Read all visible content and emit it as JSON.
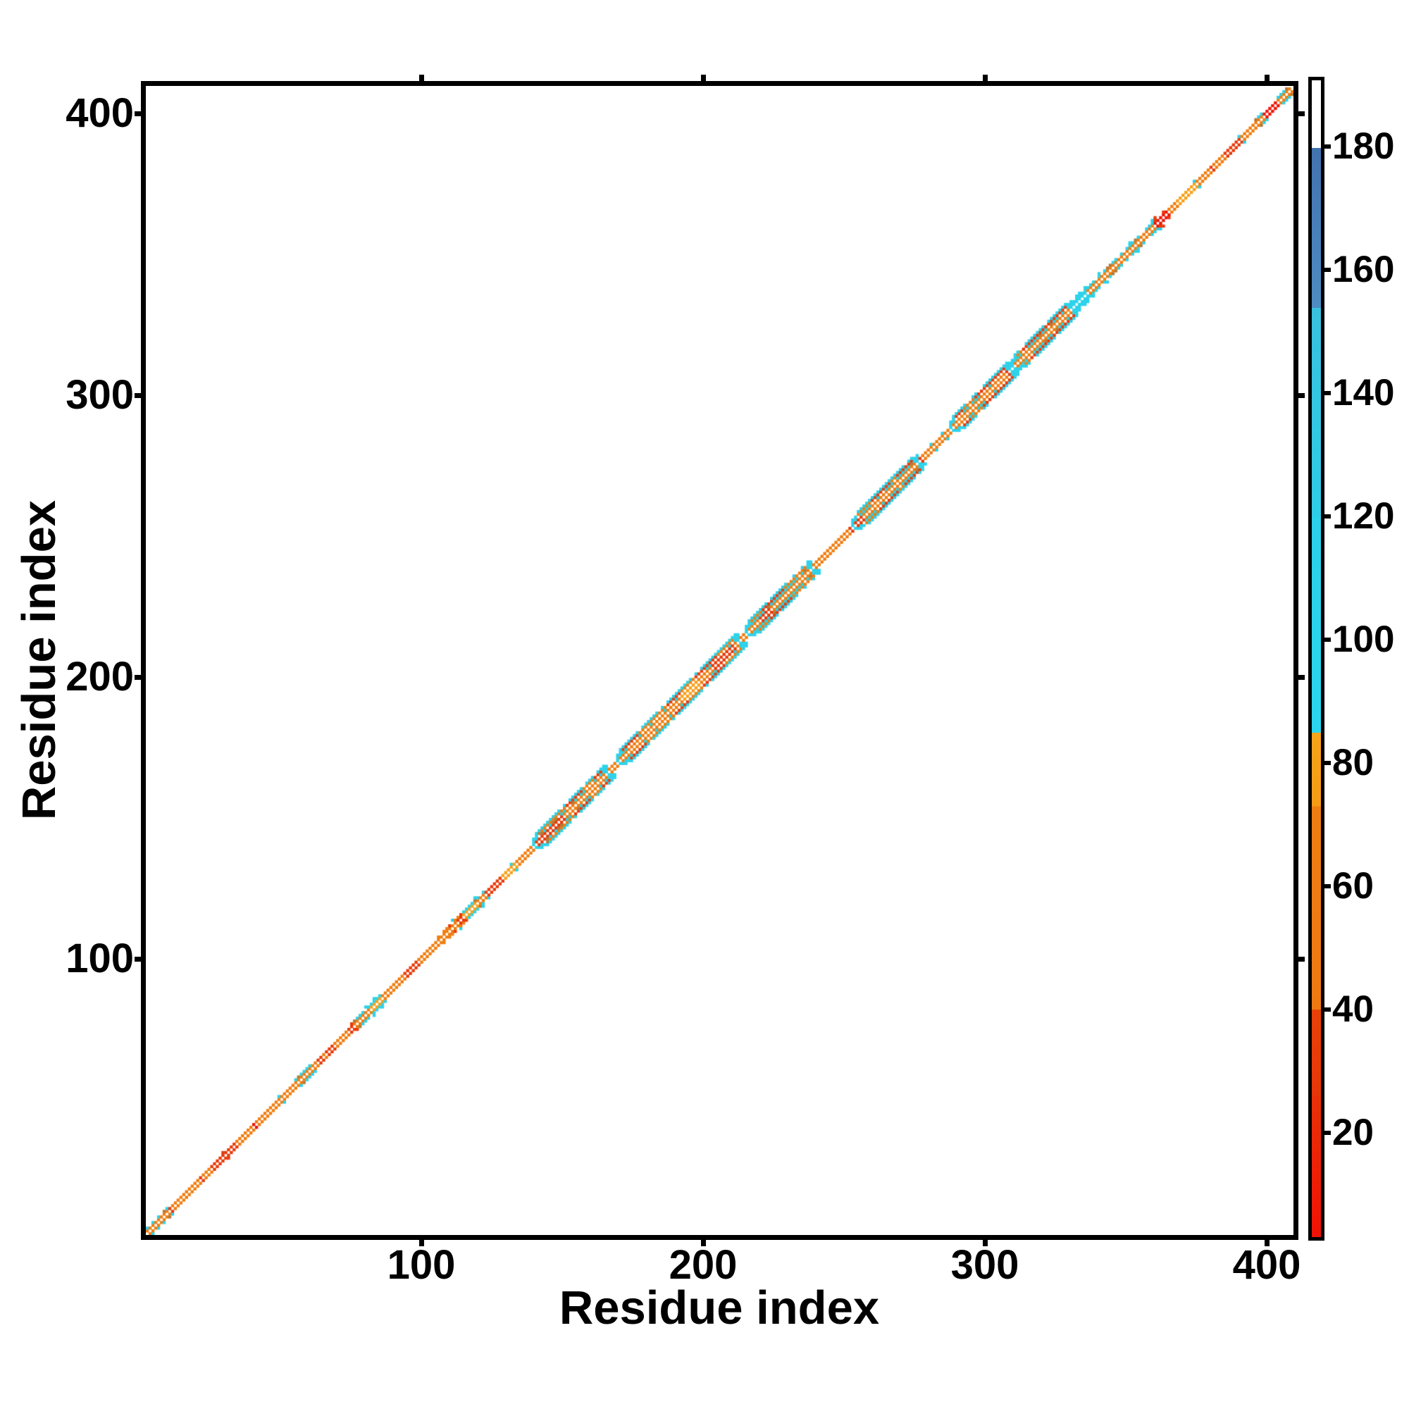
{
  "figure": {
    "xlabel": "Residue index",
    "ylabel": "Residue index",
    "x_ticks": [
      100,
      200,
      300,
      400
    ],
    "y_ticks": [
      100,
      200,
      300,
      400
    ],
    "axis_range": [
      1,
      410
    ]
  },
  "colorbar": {
    "range": [
      3,
      191
    ],
    "ticks": [
      20,
      40,
      60,
      80,
      100,
      120,
      140,
      160,
      180
    ],
    "stops": [
      {
        "from": 3,
        "to": 26,
        "c1": "#F01205",
        "c2": "#E93108"
      },
      {
        "from": 26,
        "to": 40,
        "c1": "#E73608",
        "c2": "#E84208"
      },
      {
        "from": 40,
        "to": 73,
        "c1": "#EE7911",
        "c2": "#EF7E12"
      },
      {
        "from": 73,
        "to": 85,
        "c1": "#F49C15",
        "c2": "#F6A41A"
      },
      {
        "from": 85,
        "to": 120,
        "c1": "#29D6EE",
        "c2": "#2BD0E9"
      },
      {
        "from": 120,
        "to": 154,
        "c1": "#2FCCE6",
        "c2": "#38C1DE"
      },
      {
        "from": 154,
        "to": 180,
        "c1": "#4E8CC2",
        "c2": "#4273B0"
      },
      {
        "from": 180,
        "to": 191,
        "c1": "#FFFFFF",
        "c2": "#FFFFFF"
      }
    ]
  },
  "chart_data": {
    "type": "heatmap",
    "title": "",
    "xlabel": "Residue index",
    "ylabel": "Residue index",
    "x_range": [
      1,
      410
    ],
    "y_range": [
      1,
      410
    ],
    "grid": false,
    "legend_position": "right-colorbar",
    "description": "Symmetric residue-residue contact map: colored cells only near the main diagonal (|i-j| <= 4). Main diagonal itself is white; flanking stripes are orange/red with cyan outer edges; thicker band segments correspond to helical regions.",
    "cell_size_residues": 1,
    "palette": {
      "orange": "#EF7D10",
      "orangeBright": "#F7A01A",
      "red": "#E73A0A",
      "redDeep": "#EE1506",
      "cyan": "#2BD2EA",
      "olive": "#AF7B3E",
      "background": "#FFFFFF"
    },
    "band_offsets": {
      "diagonal": "white",
      "thin_styles_width": 2,
      "thick_styles_width": 4
    },
    "segments": [
      {
        "start": 1,
        "end": 9,
        "style": "thinCyanEdge"
      },
      {
        "start": 9,
        "end": 27,
        "style": "thinOrange"
      },
      {
        "start": 27,
        "end": 40,
        "style": "thinRed"
      },
      {
        "start": 40,
        "end": 53,
        "style": "thinOrange"
      },
      {
        "start": 53,
        "end": 62,
        "style": "thinCyanEdge"
      },
      {
        "start": 62,
        "end": 75,
        "style": "thinRed"
      },
      {
        "start": 75,
        "end": 85,
        "style": "thinCyanEdge"
      },
      {
        "start": 85,
        "end": 98,
        "style": "thinOrange"
      },
      {
        "start": 98,
        "end": 105,
        "style": "thinRed"
      },
      {
        "start": 105,
        "end": 114,
        "style": "bulge"
      },
      {
        "start": 114,
        "end": 122,
        "style": "thinCyanEdge"
      },
      {
        "start": 122,
        "end": 128,
        "style": "thinRed"
      },
      {
        "start": 128,
        "end": 139,
        "style": "thinOrange"
      },
      {
        "start": 139,
        "end": 166,
        "style": "thickA"
      },
      {
        "start": 166,
        "end": 169,
        "style": "thinOrange"
      },
      {
        "start": 169,
        "end": 213,
        "style": "thickB"
      },
      {
        "start": 213,
        "end": 215,
        "style": "thinOrange"
      },
      {
        "start": 215,
        "end": 239,
        "style": "thickA"
      },
      {
        "start": 239,
        "end": 253,
        "style": "thinRed"
      },
      {
        "start": 253,
        "end": 277,
        "style": "thickA"
      },
      {
        "start": 277,
        "end": 288,
        "style": "thinOrange"
      },
      {
        "start": 288,
        "end": 310,
        "style": "thickB"
      },
      {
        "start": 310,
        "end": 332,
        "style": "thickA"
      },
      {
        "start": 332,
        "end": 340,
        "style": "cyanBlob"
      },
      {
        "start": 340,
        "end": 361,
        "style": "thinCyanEdge"
      },
      {
        "start": 361,
        "end": 366,
        "style": "redBlob"
      },
      {
        "start": 366,
        "end": 376,
        "style": "thinOrange"
      },
      {
        "start": 376,
        "end": 382,
        "style": "thinRed"
      },
      {
        "start": 382,
        "end": 395,
        "style": "thinOrange"
      },
      {
        "start": 395,
        "end": 400,
        "style": "thinCyanEdge"
      },
      {
        "start": 400,
        "end": 405,
        "style": "thinRed"
      },
      {
        "start": 405,
        "end": 411,
        "style": "thinCyanEdge"
      }
    ]
  }
}
